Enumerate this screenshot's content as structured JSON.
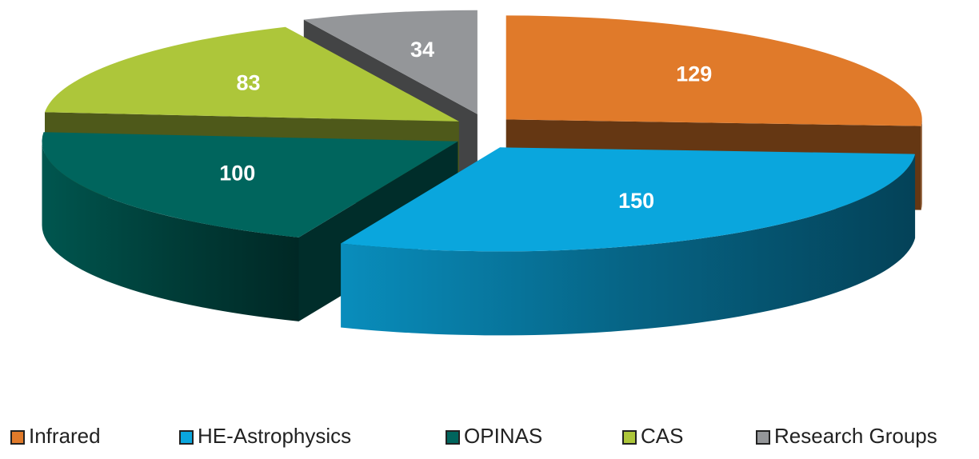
{
  "chart_data": {
    "type": "pie",
    "categories": [
      "Infrared",
      "HE-Astrophysics",
      "OPINAS",
      "CAS",
      "Research Groups"
    ],
    "values": [
      129,
      150,
      100,
      83,
      34
    ],
    "colors": [
      "#e07a2a",
      "#0aa6dd",
      "#00655d",
      "#adc63a",
      "#949699"
    ],
    "legend": "bottom"
  }
}
